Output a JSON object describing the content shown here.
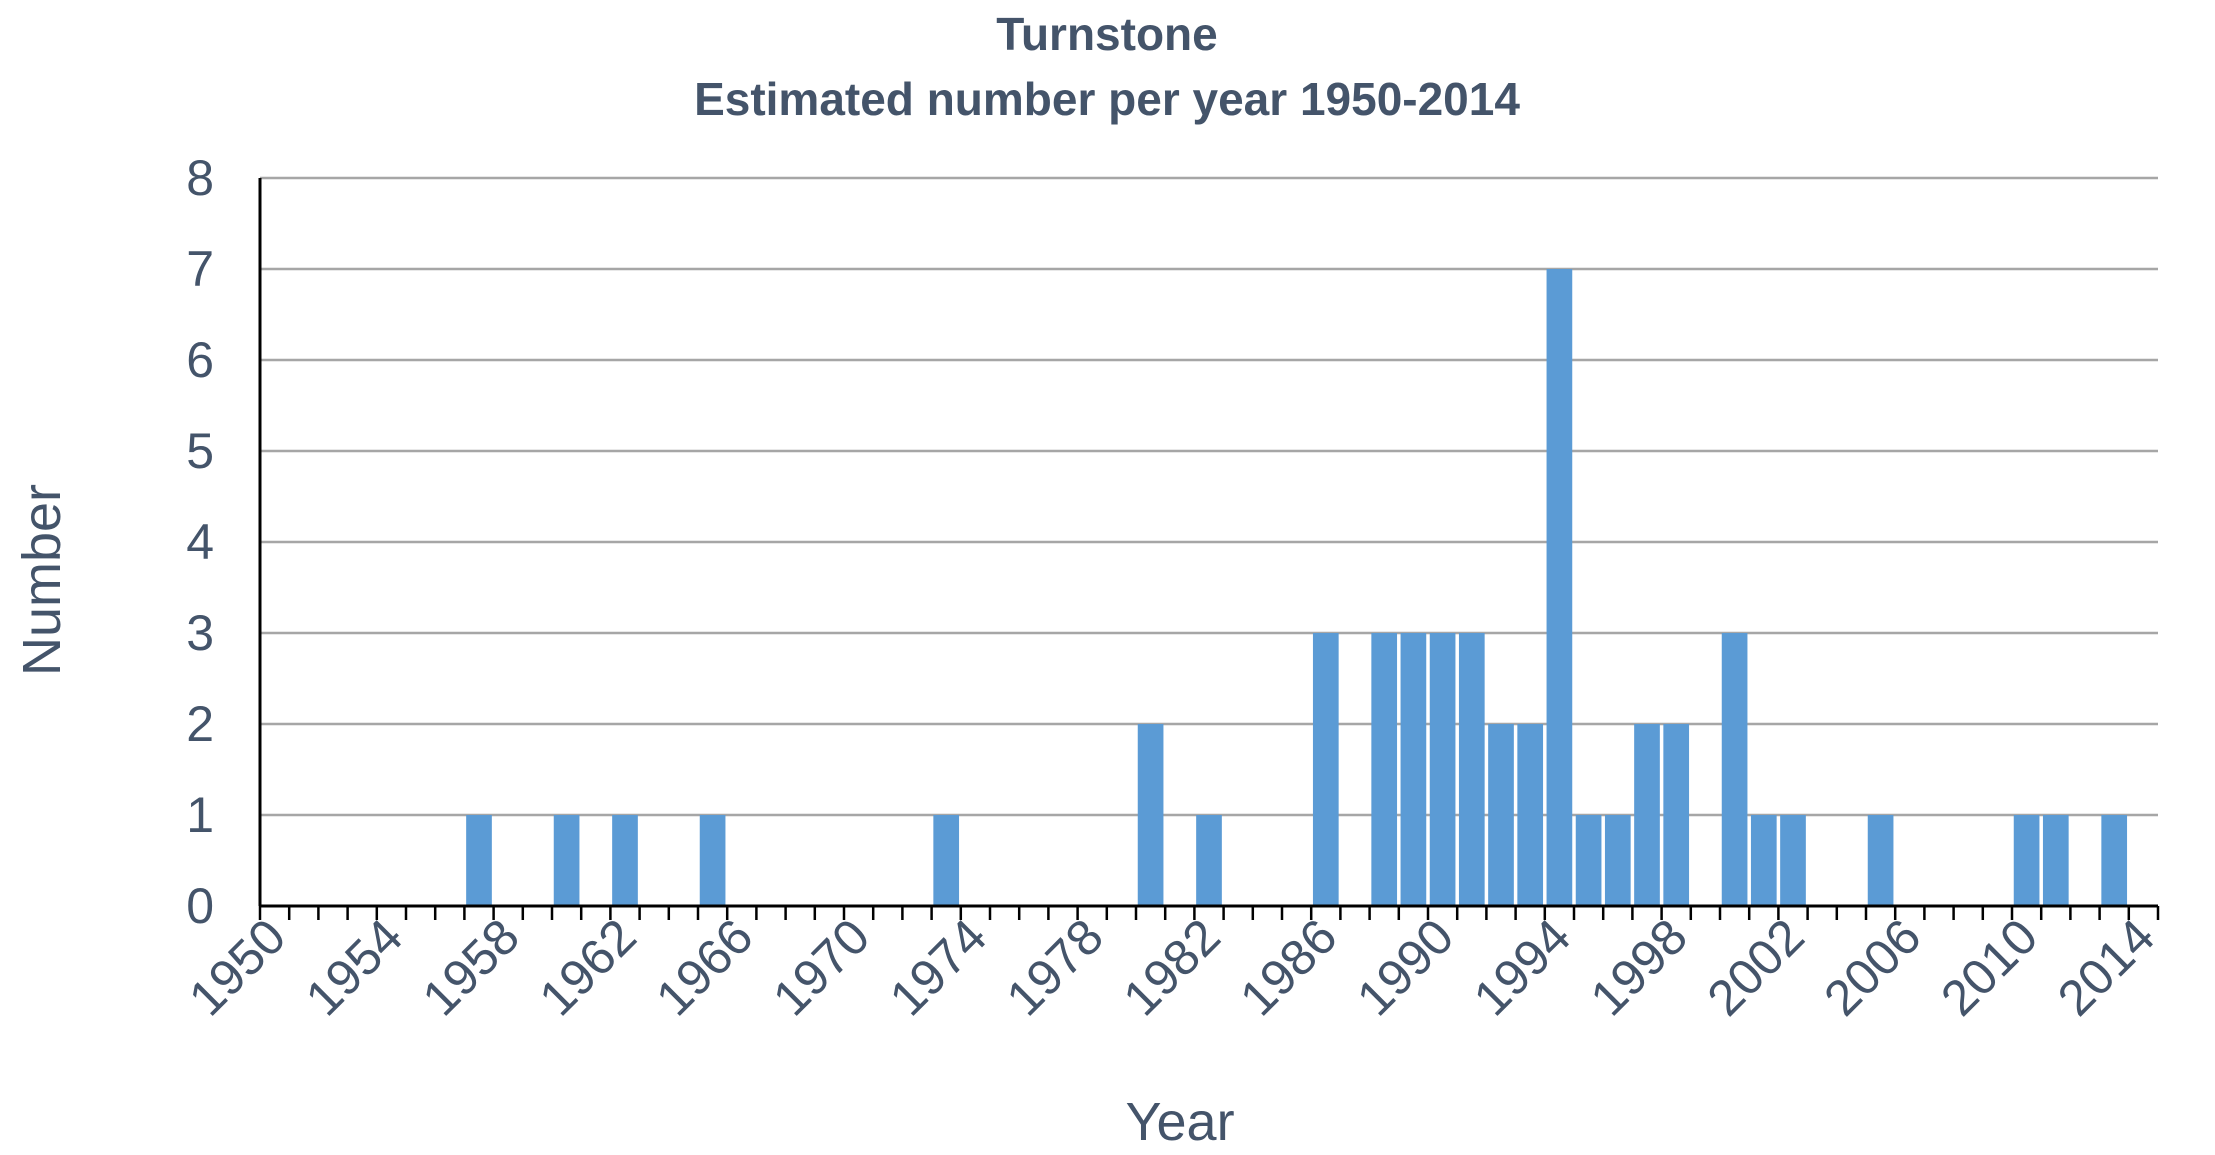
{
  "chart_data": {
    "type": "bar",
    "title": "Turnstone",
    "subtitle": "Estimated number per year 1950-2014",
    "xlabel": "Year",
    "ylabel": "Number",
    "ylim": [
      0,
      8
    ],
    "yticks": [
      "0",
      "1",
      "2",
      "3",
      "4",
      "5",
      "6",
      "7",
      "8"
    ],
    "xlim": [
      1950,
      2014
    ],
    "xtick_labels": [
      "1950",
      "1954",
      "1958",
      "1962",
      "1966",
      "1970",
      "1974",
      "1978",
      "1982",
      "1986",
      "1990",
      "1994",
      "1998",
      "2002",
      "2006",
      "2010",
      "2014"
    ],
    "grid": true,
    "legend": "none",
    "bar_color": "#5b9bd5",
    "axis_color": "#000000",
    "grid_color": "#a6a6a6",
    "text_color": "#44546a",
    "series": [
      {
        "x": [
          1957,
          1960,
          1962,
          1965,
          1973,
          1980,
          1982,
          1986,
          1988,
          1989,
          1990,
          1991,
          1992,
          1993,
          1994,
          1995,
          1996,
          1997,
          1998,
          2000,
          2001,
          2002,
          2005,
          2010,
          2011,
          2013
        ],
        "values": [
          1,
          1,
          1,
          1,
          1,
          2,
          1,
          3,
          3,
          3,
          3,
          3,
          2,
          2,
          7,
          1,
          1,
          2,
          2,
          3,
          1,
          1,
          1,
          1,
          1,
          1
        ]
      }
    ]
  }
}
